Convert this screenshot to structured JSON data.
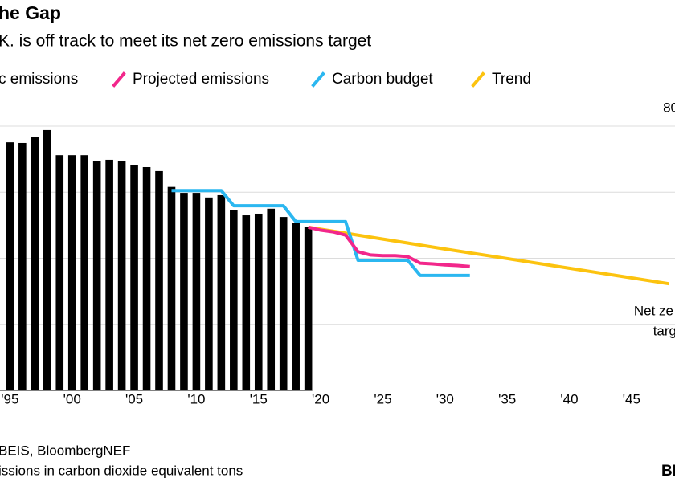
{
  "chart_data": {
    "type": "bar-line",
    "title": "he Gap",
    "subtitle": "K. is off track to meet its net zero emissions target",
    "series": [
      {
        "name": "c emissions",
        "type": "bar",
        "color": "#000000",
        "x": [
          1995,
          1996,
          1997,
          1998,
          1999,
          2000,
          2001,
          2002,
          2003,
          2004,
          2005,
          2006,
          2007,
          2008,
          2009,
          2010,
          2011,
          2012,
          2013,
          2014,
          2015,
          2016,
          2017,
          2018,
          2019
        ],
        "values": [
          751,
          749,
          768,
          788,
          712,
          712,
          712,
          693,
          698,
          693,
          681,
          676,
          664,
          616,
          598,
          598,
          584,
          591,
          545,
          530,
          535,
          550,
          525,
          506,
          494
        ]
      },
      {
        "name": "Projected emissions",
        "type": "line",
        "color": "#f2278b",
        "x": [
          2019,
          2020,
          2021,
          2022,
          2023,
          2024,
          2025,
          2026,
          2027,
          2028,
          2029,
          2030,
          2031,
          2032
        ],
        "values": [
          494,
          485,
          480,
          470,
          420,
          410,
          408,
          408,
          405,
          385,
          383,
          380,
          378,
          375
        ]
      },
      {
        "name": "Carbon budget",
        "type": "line",
        "color": "#2bb7f0",
        "x": [
          2008,
          2012,
          2013,
          2017,
          2018,
          2022,
          2023,
          2027,
          2028,
          2032
        ],
        "values": [
          605,
          605,
          559,
          559,
          511,
          511,
          394,
          394,
          348,
          348
        ]
      },
      {
        "name": "Trend",
        "type": "line",
        "color": "#fcc30f",
        "x": [
          2019,
          2030,
          2040,
          2048
        ],
        "values": [
          494,
          428,
          370,
          323
        ]
      }
    ],
    "xlim": [
      1994.2,
      2048.5
    ],
    "ylim": [
      0,
      800
    ],
    "xticks": [
      {
        "value": 1995,
        "label": "'95"
      },
      {
        "value": 2000,
        "label": "'00"
      },
      {
        "value": 2005,
        "label": "'05"
      },
      {
        "value": 2010,
        "label": "'10"
      },
      {
        "value": 2015,
        "label": "'15"
      },
      {
        "value": 2020,
        "label": "'20"
      },
      {
        "value": 2025,
        "label": "'25"
      },
      {
        "value": 2030,
        "label": "'30"
      },
      {
        "value": 2035,
        "label": "'35"
      },
      {
        "value": 2040,
        "label": "'40"
      },
      {
        "value": 2045,
        "label": "'45"
      }
    ],
    "yticks": [
      {
        "value": 800,
        "label": "80"
      }
    ],
    "grid_values": [
      200,
      400,
      600
    ],
    "grid": true,
    "annotations": [
      "Net ze",
      "targ"
    ],
    "source": "BEIS, BloombergNEF",
    "note": "issions in carbon dioxide equivalent tons",
    "logo": "BI"
  }
}
